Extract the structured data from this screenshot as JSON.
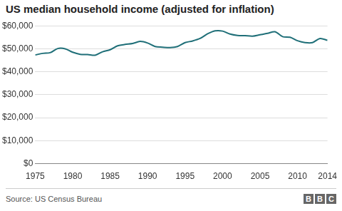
{
  "chart_data": {
    "type": "line",
    "title": "US median household income (adjusted for inflation)",
    "source": "Source: US Census Bureau",
    "logo": "BBC",
    "x": [
      1975,
      1976,
      1977,
      1978,
      1979,
      1980,
      1981,
      1982,
      1983,
      1984,
      1985,
      1986,
      1987,
      1988,
      1989,
      1990,
      1991,
      1992,
      1993,
      1994,
      1995,
      1996,
      1997,
      1998,
      1999,
      2000,
      2001,
      2002,
      2003,
      2004,
      2005,
      2006,
      2007,
      2008,
      2009,
      2010,
      2011,
      2012,
      2013,
      2014
    ],
    "values": [
      47300,
      48000,
      48300,
      50100,
      50000,
      48500,
      47600,
      47500,
      47200,
      48700,
      49600,
      51300,
      51900,
      52300,
      53200,
      52500,
      51000,
      50700,
      50500,
      51000,
      52700,
      53400,
      54500,
      56500,
      57800,
      57700,
      56400,
      55800,
      55700,
      55500,
      56100,
      56700,
      57400,
      55300,
      55000,
      53500,
      52700,
      52700,
      54500,
      53700
    ],
    "color": "#1f6f78",
    "xlim": [
      1975,
      2014
    ],
    "xticks": [
      1975,
      1980,
      1985,
      1990,
      1995,
      2000,
      2005,
      2010,
      2014
    ],
    "ylim": [
      0,
      60000
    ],
    "yticks": [
      {
        "value": 0,
        "label": "$0"
      },
      {
        "value": 10000,
        "label": "$10,000"
      },
      {
        "value": 20000,
        "label": "$20,000"
      },
      {
        "value": 30000,
        "label": "$30,000"
      },
      {
        "value": 40000,
        "label": "$40,000"
      },
      {
        "value": 50000,
        "label": "$50,000"
      },
      {
        "value": 60000,
        "label": "$60,000"
      }
    ],
    "grid": true
  }
}
